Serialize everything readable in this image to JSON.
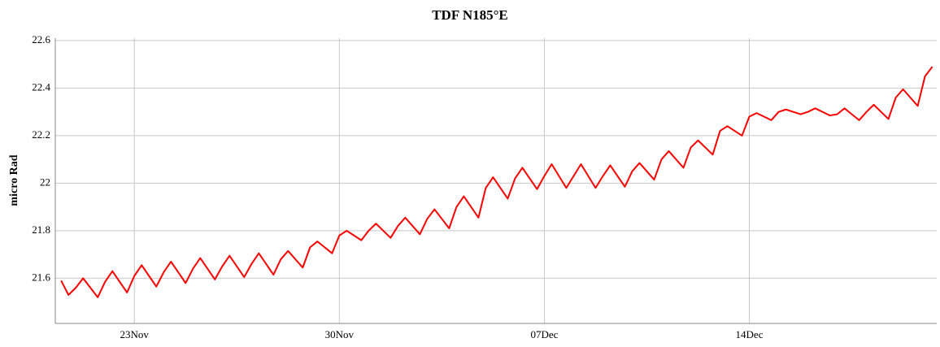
{
  "chart_data": {
    "type": "line",
    "title": "TDF N185°E",
    "y_label": "micro Rad",
    "xlim": [
      -2.7,
      27.4
    ],
    "xticks": [
      {
        "value": 0,
        "label": "23Nov"
      },
      {
        "value": 7,
        "label": "30Nov"
      },
      {
        "value": 14,
        "label": "07Dec"
      },
      {
        "value": 21,
        "label": "14Dec"
      }
    ],
    "ylim": [
      21.41,
      22.61
    ],
    "yticks": [
      21.6,
      21.8,
      22,
      22.2,
      22.4,
      22.6
    ],
    "grid": true,
    "x": [
      -2.5,
      -2.25,
      -2,
      -1.75,
      -1.5,
      -1.25,
      -1,
      -0.75,
      -0.5,
      -0.25,
      0,
      0.25,
      0.5,
      0.75,
      1,
      1.25,
      1.5,
      1.75,
      2,
      2.25,
      2.5,
      2.75,
      3,
      3.25,
      3.5,
      3.75,
      4,
      4.25,
      4.5,
      4.75,
      5,
      5.25,
      5.5,
      5.75,
      6,
      6.25,
      6.5,
      6.75,
      7,
      7.25,
      7.5,
      7.75,
      8,
      8.25,
      8.5,
      8.75,
      9,
      9.25,
      9.5,
      9.75,
      10,
      10.25,
      10.5,
      10.75,
      11,
      11.25,
      11.5,
      11.75,
      12,
      12.25,
      12.5,
      12.75,
      13,
      13.25,
      13.5,
      13.75,
      14,
      14.25,
      14.5,
      14.75,
      15,
      15.25,
      15.5,
      15.75,
      16,
      16.25,
      16.5,
      16.75,
      17,
      17.25,
      17.5,
      17.75,
      18,
      18.25,
      18.5,
      18.75,
      19,
      19.25,
      19.5,
      19.75,
      20,
      20.25,
      20.5,
      20.75,
      21,
      21.25,
      21.5,
      21.75,
      22,
      22.25,
      22.5,
      22.75,
      23,
      23.25,
      23.5,
      23.75,
      24,
      24.25,
      24.5,
      24.75,
      25,
      25.25,
      25.5,
      25.75,
      26,
      26.25,
      26.5,
      26.75,
      27,
      27.25
    ],
    "series": [
      {
        "name": "TDF N185°E",
        "color": "#ff0000",
        "values": [
          21.59,
          21.53,
          21.56,
          21.6,
          21.56,
          21.52,
          21.585,
          21.63,
          21.585,
          21.54,
          21.61,
          21.655,
          21.61,
          21.565,
          21.625,
          21.67,
          21.625,
          21.58,
          21.64,
          21.685,
          21.64,
          21.595,
          21.65,
          21.695,
          21.65,
          21.605,
          21.66,
          21.705,
          21.66,
          21.615,
          21.68,
          21.715,
          21.68,
          21.645,
          21.73,
          21.755,
          21.73,
          21.705,
          21.78,
          21.8,
          21.78,
          21.76,
          21.8,
          21.83,
          21.8,
          21.77,
          21.82,
          21.855,
          21.82,
          21.785,
          21.85,
          21.89,
          21.85,
          21.81,
          21.9,
          21.945,
          21.9,
          21.855,
          21.98,
          22.025,
          21.98,
          21.935,
          22.02,
          22.065,
          22.02,
          21.975,
          22.03,
          22.08,
          22.03,
          21.98,
          22.03,
          22.08,
          22.03,
          21.98,
          22.03,
          22.075,
          22.03,
          21.985,
          22.05,
          22.085,
          22.05,
          22.015,
          22.1,
          22.135,
          22.1,
          22.065,
          22.15,
          22.18,
          22.15,
          22.12,
          22.22,
          22.24,
          22.22,
          22.2,
          22.28,
          22.295,
          22.28,
          22.265,
          22.3,
          22.31,
          22.3,
          22.29,
          22.3,
          22.315,
          22.3,
          22.285,
          22.29,
          22.315,
          22.29,
          22.265,
          22.3,
          22.33,
          22.3,
          22.27,
          22.36,
          22.395,
          22.36,
          22.325,
          22.45,
          22.49
        ]
      }
    ]
  }
}
